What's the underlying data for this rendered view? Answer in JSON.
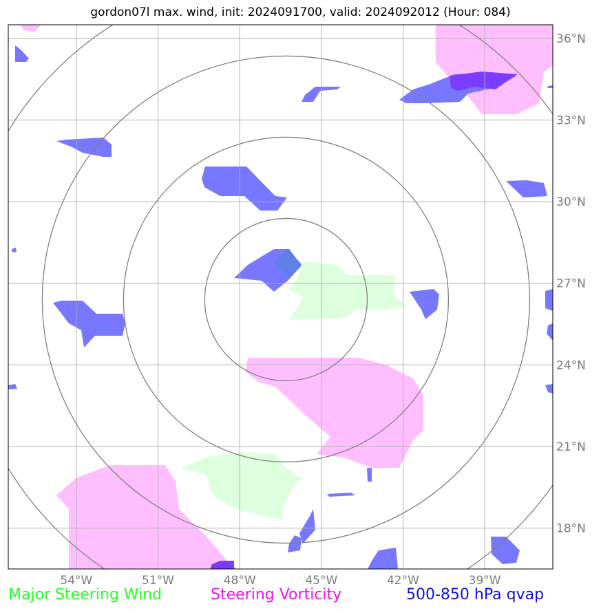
{
  "title": "gordon07l max. wind, init: 2024091700, valid: 2024092012 (Hour: 084)",
  "map": {
    "lon_range": [
      -56.5,
      -36.5
    ],
    "lat_range": [
      16.5,
      36.5
    ],
    "lon_ticks": [
      {
        "value": -54,
        "label": "54°W"
      },
      {
        "value": -51,
        "label": "51°W"
      },
      {
        "value": -48,
        "label": "48°W"
      },
      {
        "value": -45,
        "label": "45°W"
      },
      {
        "value": -42,
        "label": "42°W"
      },
      {
        "value": -39,
        "label": "39°W"
      }
    ],
    "lat_ticks": [
      {
        "value": 36,
        "label": "36°N"
      },
      {
        "value": 33,
        "label": "33°N"
      },
      {
        "value": 30,
        "label": "30°N"
      },
      {
        "value": 27,
        "label": "27°N"
      },
      {
        "value": 24,
        "label": "24°N"
      },
      {
        "value": 21,
        "label": "21°N"
      },
      {
        "value": 18,
        "label": "18°N"
      }
    ],
    "range_rings_center": {
      "lon": -46.3,
      "lat": 26.4
    },
    "range_ring_count": 4,
    "grid": true,
    "colors": {
      "steering_wind": "#ddffdd",
      "steering_vorticity": "#ffbfff",
      "qvap": "#7777ff",
      "qvap_dark": "#7a3cff",
      "grid": "#b0b0b0",
      "rings": "#808080"
    }
  },
  "legend": {
    "wind": "Major Steering Wind",
    "vorticity": "Steering Vorticity",
    "qvap": "500-850 hPa qvap"
  }
}
